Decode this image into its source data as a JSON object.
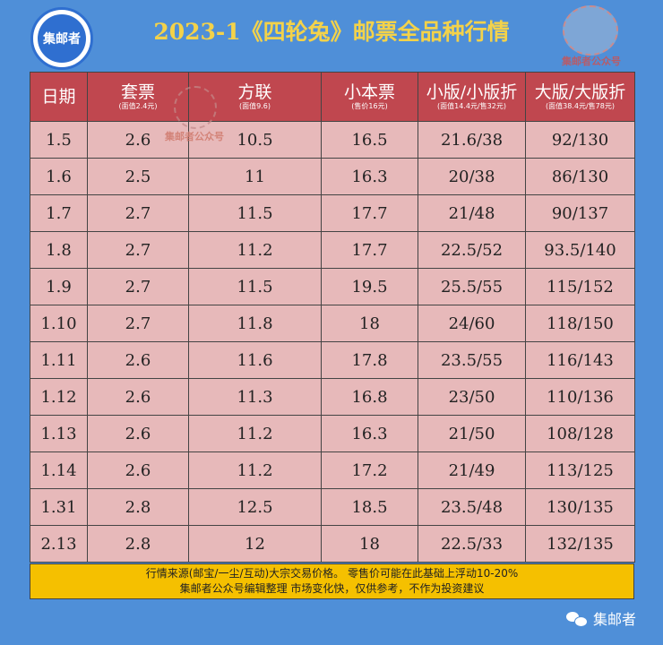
{
  "header": {
    "title": "2023-1《四轮兔》邮票全品种行情",
    "logo_left_text": "集邮者",
    "logo_right_text": "集邮者公众号"
  },
  "table": {
    "columns": [
      {
        "label": "日期",
        "sub": ""
      },
      {
        "label": "套票",
        "sub": "(面值2.4元)"
      },
      {
        "label": "方联",
        "sub": "(面值9.6)"
      },
      {
        "label": "小本票",
        "sub": "(售价16元)"
      },
      {
        "label": "小版/小版折",
        "sub": "(面值14.4元/售32元)"
      },
      {
        "label": "大版/大版折",
        "sub": "(面值38.4元/售78元)"
      }
    ],
    "rows": [
      [
        "1.5",
        "2.6",
        "10.5",
        "16.5",
        "21.6/38",
        "92/130"
      ],
      [
        "1.6",
        "2.5",
        "11",
        "16.3",
        "20/38",
        "86/130"
      ],
      [
        "1.7",
        "2.7",
        "11.5",
        "17.7",
        "21/48",
        "90/137"
      ],
      [
        "1.8",
        "2.7",
        "11.2",
        "17.7",
        "22.5/52",
        "93.5/140"
      ],
      [
        "1.9",
        "2.7",
        "11.5",
        "19.5",
        "25.5/55",
        "115/152"
      ],
      [
        "1.10",
        "2.7",
        "11.8",
        "18",
        "24/60",
        "118/150"
      ],
      [
        "1.11",
        "2.6",
        "11.6",
        "17.8",
        "23.5/55",
        "116/143"
      ],
      [
        "1.12",
        "2.6",
        "11.3",
        "16.8",
        "23/50",
        "110/136"
      ],
      [
        "1.13",
        "2.6",
        "11.2",
        "16.3",
        "21/50",
        "108/128"
      ],
      [
        "1.14",
        "2.6",
        "11.2",
        "17.2",
        "21/49",
        "113/125"
      ],
      [
        "1.31",
        "2.8",
        "12.5",
        "18.5",
        "23.5/48",
        "130/135"
      ],
      [
        "2.13",
        "2.8",
        "12",
        "18",
        "22.5/33",
        "132/135"
      ]
    ]
  },
  "watermark_text": "集邮者公众号",
  "footer": {
    "line1": "行情来源(邮宝/一尘/互动)大宗交易价格。 零售价可能在此基础上浮动10-20%",
    "line2": "集邮者公众号编辑整理 市场变化快，仅供参考，不作为投资建议"
  },
  "brand": {
    "icon": "wechat-icon",
    "label": "集邮者"
  },
  "colors": {
    "background": "#4f8fd8",
    "title": "#f3d24a",
    "header_row": "#c0474f",
    "body_row": "#e7b9ba",
    "footer": "#f5c000"
  }
}
